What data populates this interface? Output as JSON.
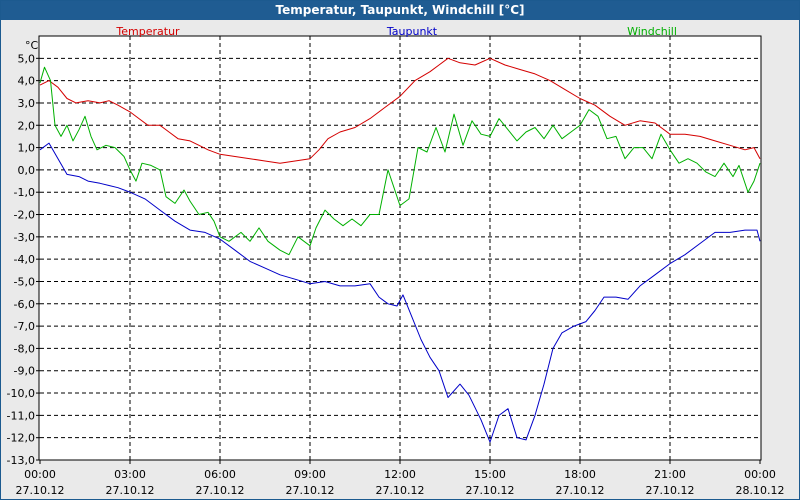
{
  "chart_data": {
    "type": "line",
    "title": "Temperatur, Taupunkt, Windchill [°C]",
    "ylabel": "°C",
    "ylim": [
      -13,
      6
    ],
    "yticks": [
      "5,0",
      "4,0",
      "3,0",
      "2,0",
      "1,0",
      "0,0",
      "-1,0",
      "-2,0",
      "-3,0",
      "-4,0",
      "-5,0",
      "-6,0",
      "-7,0",
      "-8,0",
      "-9,0",
      "-10,0",
      "-11,0",
      "-12,0",
      "-13,0"
    ],
    "xlim": [
      0,
      24
    ],
    "xticks": [
      {
        "time": "00:00",
        "date": "27.10.12"
      },
      {
        "time": "03:00",
        "date": "27.10.12"
      },
      {
        "time": "06:00",
        "date": "27.10.12"
      },
      {
        "time": "09:00",
        "date": "27.10.12"
      },
      {
        "time": "12:00",
        "date": "27.10.12"
      },
      {
        "time": "15:00",
        "date": "27.10.12"
      },
      {
        "time": "18:00",
        "date": "27.10.12"
      },
      {
        "time": "21:00",
        "date": "27.10.12"
      },
      {
        "time": "00:00",
        "date": "28.10.12"
      }
    ],
    "grid": true,
    "series": [
      {
        "name": "Temperatur",
        "color": "#d40000",
        "points": [
          [
            0,
            3.8
          ],
          [
            0.3,
            4.0
          ],
          [
            0.6,
            3.7
          ],
          [
            0.9,
            3.2
          ],
          [
            1.2,
            3.0
          ],
          [
            1.6,
            3.1
          ],
          [
            2.0,
            3.0
          ],
          [
            2.3,
            3.1
          ],
          [
            2.6,
            2.9
          ],
          [
            3.0,
            2.6
          ],
          [
            3.3,
            2.3
          ],
          [
            3.6,
            2.0
          ],
          [
            4.0,
            2.0
          ],
          [
            4.3,
            1.7
          ],
          [
            4.6,
            1.4
          ],
          [
            5.0,
            1.3
          ],
          [
            5.3,
            1.1
          ],
          [
            5.6,
            0.9
          ],
          [
            6.0,
            0.7
          ],
          [
            6.5,
            0.6
          ],
          [
            7.0,
            0.5
          ],
          [
            7.5,
            0.4
          ],
          [
            8.0,
            0.3
          ],
          [
            8.5,
            0.4
          ],
          [
            9.0,
            0.5
          ],
          [
            9.3,
            0.9
          ],
          [
            9.6,
            1.4
          ],
          [
            10.0,
            1.7
          ],
          [
            10.5,
            1.9
          ],
          [
            11.0,
            2.3
          ],
          [
            11.5,
            2.8
          ],
          [
            12.0,
            3.3
          ],
          [
            12.5,
            4.0
          ],
          [
            13.0,
            4.4
          ],
          [
            13.3,
            4.7
          ],
          [
            13.6,
            5.0
          ],
          [
            14.0,
            4.8
          ],
          [
            14.5,
            4.7
          ],
          [
            15.0,
            5.0
          ],
          [
            15.5,
            4.7
          ],
          [
            16.0,
            4.5
          ],
          [
            16.5,
            4.3
          ],
          [
            17.0,
            4.0
          ],
          [
            17.5,
            3.6
          ],
          [
            18.0,
            3.2
          ],
          [
            18.5,
            2.9
          ],
          [
            19.0,
            2.4
          ],
          [
            19.5,
            2.0
          ],
          [
            20.0,
            2.2
          ],
          [
            20.5,
            2.1
          ],
          [
            21.0,
            1.6
          ],
          [
            21.5,
            1.6
          ],
          [
            22.0,
            1.5
          ],
          [
            22.5,
            1.3
          ],
          [
            23.0,
            1.1
          ],
          [
            23.5,
            0.9
          ],
          [
            23.8,
            1.0
          ],
          [
            24.0,
            0.5
          ]
        ]
      },
      {
        "name": "Taupunkt",
        "color": "#0000c8",
        "points": [
          [
            0,
            0.9
          ],
          [
            0.3,
            1.2
          ],
          [
            0.6,
            0.5
          ],
          [
            0.9,
            -0.2
          ],
          [
            1.3,
            -0.3
          ],
          [
            1.6,
            -0.5
          ],
          [
            2.0,
            -0.6
          ],
          [
            2.3,
            -0.7
          ],
          [
            2.6,
            -0.8
          ],
          [
            3.0,
            -1.0
          ],
          [
            3.5,
            -1.3
          ],
          [
            4.0,
            -1.8
          ],
          [
            4.5,
            -2.3
          ],
          [
            5.0,
            -2.7
          ],
          [
            5.5,
            -2.8
          ],
          [
            6.0,
            -3.1
          ],
          [
            6.5,
            -3.6
          ],
          [
            7.0,
            -4.1
          ],
          [
            7.5,
            -4.4
          ],
          [
            8.0,
            -4.7
          ],
          [
            8.5,
            -4.9
          ],
          [
            9.0,
            -5.1
          ],
          [
            9.5,
            -5.0
          ],
          [
            10.0,
            -5.2
          ],
          [
            10.5,
            -5.2
          ],
          [
            11.0,
            -5.1
          ],
          [
            11.3,
            -5.7
          ],
          [
            11.6,
            -6.0
          ],
          [
            11.9,
            -6.1
          ],
          [
            12.1,
            -5.6
          ],
          [
            12.4,
            -6.6
          ],
          [
            12.7,
            -7.6
          ],
          [
            13.0,
            -8.4
          ],
          [
            13.3,
            -9.0
          ],
          [
            13.6,
            -10.2
          ],
          [
            14.0,
            -9.6
          ],
          [
            14.3,
            -10.1
          ],
          [
            14.7,
            -11.2
          ],
          [
            15.0,
            -12.2
          ],
          [
            15.3,
            -11.0
          ],
          [
            15.6,
            -10.7
          ],
          [
            15.9,
            -12.0
          ],
          [
            16.2,
            -12.1
          ],
          [
            16.5,
            -11.0
          ],
          [
            16.8,
            -9.6
          ],
          [
            17.1,
            -8.0
          ],
          [
            17.4,
            -7.3
          ],
          [
            17.8,
            -7.0
          ],
          [
            18.2,
            -6.8
          ],
          [
            18.5,
            -6.3
          ],
          [
            18.8,
            -5.7
          ],
          [
            19.2,
            -5.7
          ],
          [
            19.6,
            -5.8
          ],
          [
            20.0,
            -5.2
          ],
          [
            20.5,
            -4.7
          ],
          [
            21.0,
            -4.2
          ],
          [
            21.5,
            -3.8
          ],
          [
            22.0,
            -3.3
          ],
          [
            22.5,
            -2.8
          ],
          [
            23.0,
            -2.8
          ],
          [
            23.5,
            -2.7
          ],
          [
            23.9,
            -2.7
          ],
          [
            24.0,
            -3.2
          ]
        ]
      },
      {
        "name": "Windchill",
        "color": "#00b000",
        "points": [
          [
            0,
            3.9
          ],
          [
            0.15,
            4.6
          ],
          [
            0.35,
            4.0
          ],
          [
            0.5,
            2.0
          ],
          [
            0.7,
            1.5
          ],
          [
            0.9,
            2.0
          ],
          [
            1.1,
            1.3
          ],
          [
            1.3,
            1.8
          ],
          [
            1.5,
            2.4
          ],
          [
            1.7,
            1.5
          ],
          [
            1.9,
            0.9
          ],
          [
            2.2,
            1.1
          ],
          [
            2.5,
            1.0
          ],
          [
            2.8,
            0.6
          ],
          [
            3.0,
            0.0
          ],
          [
            3.2,
            -0.5
          ],
          [
            3.4,
            0.3
          ],
          [
            3.7,
            0.2
          ],
          [
            4.0,
            0.0
          ],
          [
            4.2,
            -1.2
          ],
          [
            4.5,
            -1.5
          ],
          [
            4.8,
            -0.9
          ],
          [
            5.0,
            -1.4
          ],
          [
            5.3,
            -2.0
          ],
          [
            5.6,
            -1.9
          ],
          [
            5.8,
            -2.3
          ],
          [
            6.0,
            -3.0
          ],
          [
            6.3,
            -3.2
          ],
          [
            6.7,
            -2.8
          ],
          [
            7.0,
            -3.2
          ],
          [
            7.3,
            -2.6
          ],
          [
            7.6,
            -3.2
          ],
          [
            8.0,
            -3.6
          ],
          [
            8.3,
            -3.8
          ],
          [
            8.6,
            -3.0
          ],
          [
            9.0,
            -3.4
          ],
          [
            9.2,
            -2.6
          ],
          [
            9.5,
            -1.8
          ],
          [
            9.8,
            -2.2
          ],
          [
            10.1,
            -2.5
          ],
          [
            10.4,
            -2.2
          ],
          [
            10.7,
            -2.5
          ],
          [
            11.0,
            -2.0
          ],
          [
            11.3,
            -2.0
          ],
          [
            11.6,
            0.0
          ],
          [
            11.8,
            -0.8
          ],
          [
            12.0,
            -1.6
          ],
          [
            12.3,
            -1.3
          ],
          [
            12.6,
            1.0
          ],
          [
            12.9,
            0.8
          ],
          [
            13.2,
            1.9
          ],
          [
            13.5,
            0.8
          ],
          [
            13.8,
            2.5
          ],
          [
            14.1,
            1.1
          ],
          [
            14.4,
            2.2
          ],
          [
            14.7,
            1.6
          ],
          [
            15.0,
            1.5
          ],
          [
            15.3,
            2.3
          ],
          [
            15.6,
            1.8
          ],
          [
            15.9,
            1.3
          ],
          [
            16.2,
            1.7
          ],
          [
            16.5,
            1.9
          ],
          [
            16.8,
            1.4
          ],
          [
            17.1,
            2.0
          ],
          [
            17.4,
            1.4
          ],
          [
            17.7,
            1.7
          ],
          [
            18.0,
            2.0
          ],
          [
            18.3,
            2.7
          ],
          [
            18.6,
            2.4
          ],
          [
            18.9,
            1.4
          ],
          [
            19.2,
            1.5
          ],
          [
            19.5,
            0.5
          ],
          [
            19.8,
            1.0
          ],
          [
            20.1,
            1.0
          ],
          [
            20.4,
            0.5
          ],
          [
            20.7,
            1.6
          ],
          [
            21.0,
            0.9
          ],
          [
            21.3,
            0.3
          ],
          [
            21.6,
            0.5
          ],
          [
            21.9,
            0.3
          ],
          [
            22.2,
            -0.1
          ],
          [
            22.5,
            -0.3
          ],
          [
            22.8,
            0.3
          ],
          [
            23.1,
            -0.3
          ],
          [
            23.3,
            0.2
          ],
          [
            23.6,
            -1.0
          ],
          [
            23.8,
            -0.5
          ],
          [
            24.0,
            0.3
          ]
        ]
      }
    ]
  }
}
